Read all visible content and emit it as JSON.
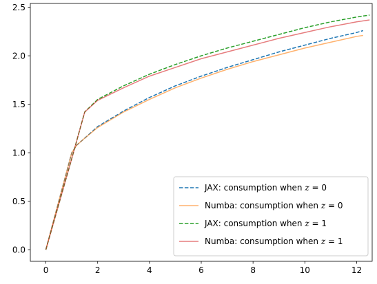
{
  "chart_data": {
    "type": "line",
    "title": "",
    "xlabel": "",
    "ylabel": "",
    "xlim": [
      -0.6,
      12.6
    ],
    "ylim": [
      -0.12,
      2.54
    ],
    "x_ticks": [
      0,
      2,
      4,
      6,
      8,
      10,
      12
    ],
    "y_ticks": [
      0.0,
      0.5,
      1.0,
      1.5,
      2.0,
      2.5
    ],
    "x_tick_labels": [
      "0",
      "2",
      "4",
      "6",
      "8",
      "10",
      "12"
    ],
    "y_tick_labels": [
      "0.0",
      "0.5",
      "1.0",
      "1.5",
      "2.0",
      "2.5"
    ],
    "grid": false,
    "legend_position": "lower-right",
    "series": [
      {
        "name": "JAX: consumption when z = 0",
        "color": "#1f77b4",
        "style": "dashed",
        "x": [
          0,
          0.5,
          1.0,
          1.2,
          1.5,
          2,
          3,
          4,
          5,
          6,
          7,
          8,
          9,
          10,
          11,
          12,
          12.25
        ],
        "y": [
          0.0,
          0.5,
          1.0,
          1.08,
          1.15,
          1.27,
          1.43,
          1.57,
          1.69,
          1.79,
          1.88,
          1.96,
          2.04,
          2.11,
          2.18,
          2.24,
          2.26
        ]
      },
      {
        "name": "Numba: consumption when z = 0",
        "color": "#ff7f0e",
        "style": "solid",
        "alpha": 0.6,
        "x": [
          0,
          0.5,
          1.0,
          1.2,
          1.5,
          2,
          3,
          4,
          5,
          6,
          7,
          8,
          9,
          10,
          11,
          12,
          12.25
        ],
        "y": [
          0.0,
          0.5,
          1.0,
          1.08,
          1.15,
          1.26,
          1.42,
          1.55,
          1.67,
          1.77,
          1.86,
          1.94,
          2.01,
          2.08,
          2.14,
          2.2,
          2.21
        ]
      },
      {
        "name": "JAX: consumption when z = 1",
        "color": "#2ca02c",
        "style": "dashed",
        "x": [
          0,
          0.5,
          1.0,
          1.5,
          2,
          3,
          4,
          5,
          6,
          7,
          8,
          9,
          10,
          11,
          12,
          12.5
        ],
        "y": [
          0.0,
          0.47,
          0.94,
          1.42,
          1.55,
          1.69,
          1.81,
          1.91,
          2.0,
          2.08,
          2.15,
          2.22,
          2.29,
          2.35,
          2.4,
          2.42
        ]
      },
      {
        "name": "Numba: consumption when z = 1",
        "color": "#d62728",
        "style": "solid",
        "alpha": 0.6,
        "x": [
          0,
          0.5,
          1.0,
          1.5,
          2,
          3,
          4,
          5,
          6,
          7,
          8,
          9,
          10,
          11,
          12,
          12.5
        ],
        "y": [
          0.0,
          0.47,
          0.94,
          1.42,
          1.54,
          1.67,
          1.79,
          1.88,
          1.97,
          2.04,
          2.11,
          2.18,
          2.24,
          2.3,
          2.35,
          2.37
        ]
      }
    ]
  }
}
